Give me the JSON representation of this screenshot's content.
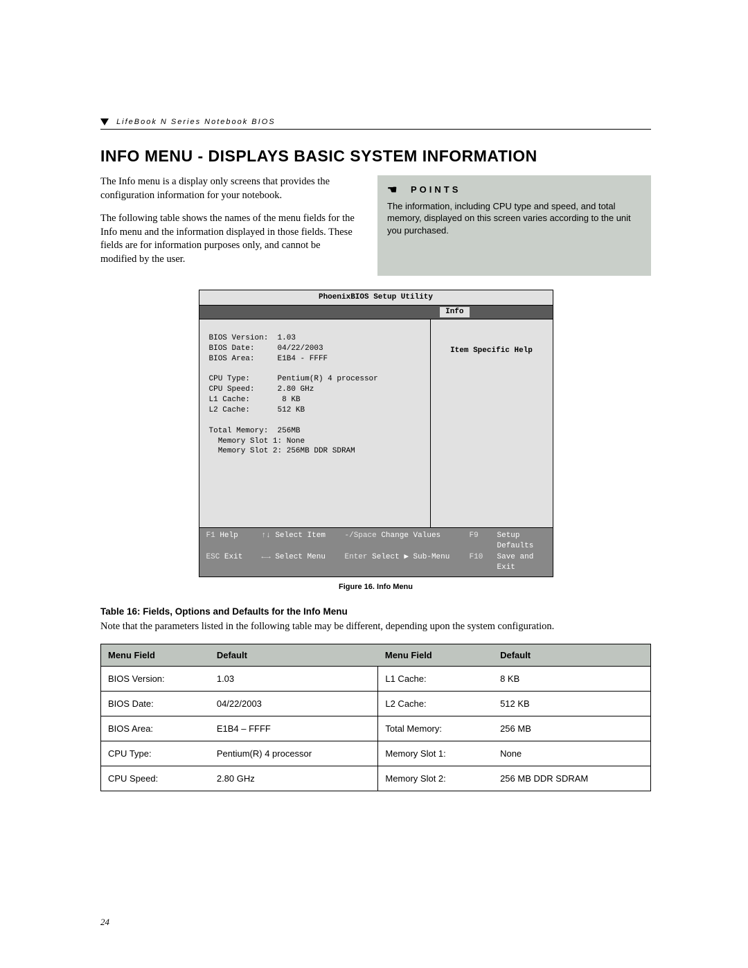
{
  "header": {
    "product_line": "LifeBook N Series Notebook BIOS"
  },
  "title": "INFO MENU - DISPLAYS BASIC SYSTEM INFORMATION",
  "body": {
    "p1": "The Info menu is a display only screens that provides the configuration information for your notebook.",
    "p2": "The following table shows the names of the menu fields for the Info menu and the information displayed in those fields. These fields are for information purposes only, and cannot be modified by the user."
  },
  "points": {
    "heading": "POINTS",
    "text": "The information, including CPU type and speed, and total memory, displayed on this screen varies according to the unit you purchased."
  },
  "bios": {
    "utility_title": "PhoenixBIOS Setup Utility",
    "active_tab": "Info",
    "help_title": "Item Specific Help",
    "fields": {
      "bios_version_label": "BIOS Version:",
      "bios_version": "1.03",
      "bios_date_label": "BIOS Date:",
      "bios_date": "04/22/2003",
      "bios_area_label": "BIOS Area:",
      "bios_area": "E1B4 - FFFF",
      "cpu_type_label": "CPU Type:",
      "cpu_type": "Pentium(R) 4 processor",
      "cpu_speed_label": "CPU Speed:",
      "cpu_speed": "2.80 GHz",
      "l1_label": "L1 Cache:",
      "l1": "8 KB",
      "l2_label": "L2 Cache:",
      "l2": "512 KB",
      "total_mem_label": "Total Memory:",
      "total_mem": "256MB",
      "slot1_label": "Memory Slot 1:",
      "slot1": "None",
      "slot2_label": "Memory Slot 2:",
      "slot2": "256MB DDR SDRAM"
    },
    "footer": {
      "f1": "F1",
      "help": "Help",
      "select_item": "Select Item",
      "change_values_key": "-/Space",
      "change_values": "Change Values",
      "f9": "F9",
      "setup_defaults": "Setup Defaults",
      "esc": "ESC",
      "exit": "Exit",
      "select_menu": "Select Menu",
      "enter": "Enter",
      "select_sub": "Select ▶ Sub-Menu",
      "f10": "F10",
      "save_exit": "Save and Exit",
      "arrows_ud": "↑↓",
      "arrows_lr": "←→"
    }
  },
  "figure_caption": "Figure 16.  Info Menu",
  "table_caption": "Table 16: Fields, Options and Defaults for the Info Menu",
  "table_note": "Note that the parameters listed in the following table may be different, depending upon the system configuration.",
  "table": {
    "headers": [
      "Menu Field",
      "Default",
      "Menu Field",
      "Default"
    ],
    "rows": [
      [
        "BIOS Version:",
        "1.03",
        "L1 Cache:",
        "8 KB"
      ],
      [
        "BIOS Date:",
        "04/22/2003",
        "L2 Cache:",
        "512 KB"
      ],
      [
        "BIOS Area:",
        "E1B4 – FFFF",
        "Total Memory:",
        "256 MB"
      ],
      [
        "CPU Type:",
        "Pentium(R) 4 processor",
        "Memory Slot 1:",
        "None"
      ],
      [
        "CPU Speed:",
        "2.80 GHz",
        "Memory Slot 2:",
        "256 MB DDR SDRAM"
      ]
    ]
  },
  "page_number": "24",
  "colors": {
    "points_bg": "#c9cfc9",
    "bios_bg": "#e1e1e1",
    "bios_tabbar": "#5a5a5a",
    "bios_footer": "#888888",
    "table_header_bg": "#bfc5bf"
  }
}
